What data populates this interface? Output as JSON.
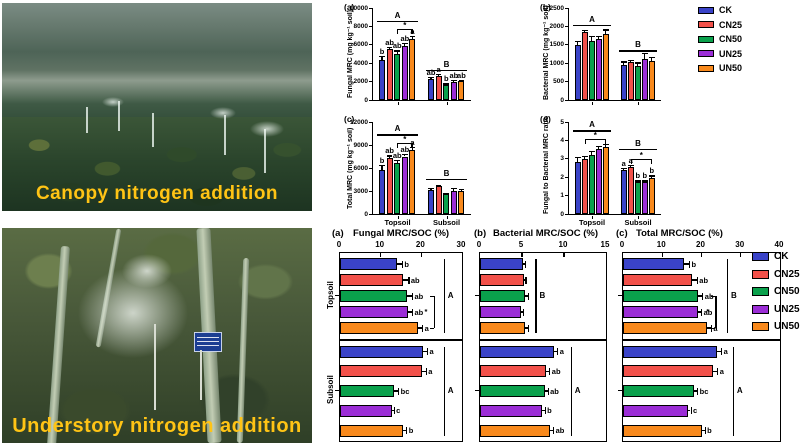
{
  "photos": {
    "canopy_caption": "Canopy nitrogen addition",
    "understory_caption": "Understory nitrogen addition",
    "caption_color": "#FFC415"
  },
  "treatments": [
    {
      "label": "CK",
      "color": "#3A43C8"
    },
    {
      "label": "CN25",
      "color": "#F2514A"
    },
    {
      "label": "CN50",
      "color": "#0AA14C"
    },
    {
      "label": "UN25",
      "color": "#9B2DD6"
    },
    {
      "label": "UN50",
      "color": "#F8891C"
    }
  ],
  "chart_data": [
    {
      "id": "top-a",
      "panel_label": "(a)",
      "type": "bar",
      "orientation": "vertical",
      "ylabel": "Fungal MRC (mg kg⁻¹ soil)",
      "ylim": [
        0,
        10000
      ],
      "yticks": [
        0,
        2000,
        4000,
        6000,
        8000,
        10000
      ],
      "categories": [
        "Topsoil",
        "Subsoil"
      ],
      "show_category_labels": false,
      "series": [
        {
          "name": "CK",
          "values": [
            4300,
            2250
          ],
          "errors": [
            500,
            250
          ]
        },
        {
          "name": "CN25",
          "values": [
            5500,
            2650
          ],
          "errors": [
            300,
            150
          ]
        },
        {
          "name": "CN50",
          "values": [
            5050,
            1600
          ],
          "errors": [
            350,
            200
          ]
        },
        {
          "name": "UN25",
          "values": [
            5900,
            1950
          ],
          "errors": [
            350,
            250
          ]
        },
        {
          "name": "UN50",
          "values": [
            6600,
            2050
          ],
          "errors": [
            400,
            150
          ]
        }
      ],
      "letters": [
        [
          "b",
          "ab",
          "ab",
          "ab",
          "a"
        ],
        [
          "ab",
          "a",
          "b",
          "ab",
          "ab"
        ]
      ],
      "sig": [
        {
          "kind": "hline",
          "group": 0,
          "at": 8600,
          "label": "A"
        },
        {
          "kind": "hline",
          "group": 1,
          "at": 3300,
          "label": "B"
        },
        {
          "kind": "bracket",
          "group": 0,
          "at": 7700,
          "from": 2,
          "to": 4,
          "label": "*"
        }
      ]
    },
    {
      "id": "top-b",
      "panel_label": "(b)",
      "type": "bar",
      "orientation": "vertical",
      "ylabel": "Bacterial MRC (mg kg⁻¹ soil)",
      "ylim": [
        0,
        2500
      ],
      "yticks": [
        0,
        500,
        1000,
        1500,
        2000,
        2500
      ],
      "categories": [
        "Topsoil",
        "Subsoil"
      ],
      "show_category_labels": false,
      "series": [
        {
          "name": "CK",
          "values": [
            1500,
            950
          ],
          "errors": [
            100,
            100
          ]
        },
        {
          "name": "CN25",
          "values": [
            1850,
            1020
          ],
          "errors": [
            60,
            60
          ]
        },
        {
          "name": "CN50",
          "values": [
            1600,
            930
          ],
          "errors": [
            150,
            90
          ]
        },
        {
          "name": "UN25",
          "values": [
            1650,
            1120
          ],
          "errors": [
            100,
            150
          ]
        },
        {
          "name": "UN50",
          "values": [
            1800,
            1060
          ],
          "errors": [
            120,
            100
          ]
        }
      ],
      "letters": [
        null,
        null
      ],
      "sig": [
        {
          "kind": "hline",
          "group": 0,
          "at": 2050,
          "label": "A"
        },
        {
          "kind": "hline",
          "group": 1,
          "at": 1350,
          "label": "B"
        }
      ]
    },
    {
      "id": "top-c",
      "panel_label": "(c)",
      "type": "bar",
      "orientation": "vertical",
      "ylabel": "Total MRC (mg kg⁻¹ soil)",
      "ylim": [
        0,
        12000
      ],
      "yticks": [
        0,
        3000,
        6000,
        9000,
        12000
      ],
      "categories": [
        "Topsoil",
        "Subsoil"
      ],
      "show_category_labels": true,
      "series": [
        {
          "name": "CK",
          "values": [
            5800,
            3100
          ],
          "errors": [
            600,
            300
          ]
        },
        {
          "name": "CN25",
          "values": [
            7300,
            3650
          ],
          "errors": [
            350,
            150
          ]
        },
        {
          "name": "CN50",
          "values": [
            6650,
            2550
          ],
          "errors": [
            400,
            250
          ]
        },
        {
          "name": "UN25",
          "values": [
            7500,
            3050
          ],
          "errors": [
            350,
            350
          ]
        },
        {
          "name": "UN50",
          "values": [
            8300,
            3050
          ],
          "errors": [
            450,
            200
          ]
        }
      ],
      "letters": [
        [
          "b",
          "ab",
          "ab",
          "ab",
          "a"
        ],
        null
      ],
      "sig": [
        {
          "kind": "hline",
          "group": 0,
          "at": 10400,
          "label": "A"
        },
        {
          "kind": "hline",
          "group": 1,
          "at": 4600,
          "label": "B"
        },
        {
          "kind": "bracket",
          "group": 0,
          "at": 9300,
          "from": 2,
          "to": 4,
          "label": "*"
        }
      ]
    },
    {
      "id": "top-d",
      "panel_label": "(d)",
      "type": "bar",
      "orientation": "vertical",
      "ylabel": "Fungal to Bacterial MRC ratio",
      "ylim": [
        0,
        5
      ],
      "yticks": [
        0,
        1,
        2,
        3,
        4,
        5
      ],
      "categories": [
        "Topsoil",
        "Subsoil"
      ],
      "show_category_labels": true,
      "series": [
        {
          "name": "CK",
          "values": [
            2.85,
            2.4
          ],
          "errors": [
            0.25,
            0.1
          ]
        },
        {
          "name": "CN25",
          "values": [
            3.0,
            2.55
          ],
          "errors": [
            0.15,
            0.1
          ]
        },
        {
          "name": "CN50",
          "values": [
            3.2,
            1.75
          ],
          "errors": [
            0.25,
            0.08
          ]
        },
        {
          "name": "UN25",
          "values": [
            3.55,
            1.75
          ],
          "errors": [
            0.15,
            0.08
          ]
        },
        {
          "name": "UN50",
          "values": [
            3.65,
            1.95
          ],
          "errors": [
            0.15,
            0.15
          ]
        }
      ],
      "letters": [
        null,
        [
          "a",
          "a",
          "b",
          "b",
          "b"
        ]
      ],
      "sig": [
        {
          "kind": "hline",
          "group": 0,
          "at": 4.55,
          "label": "A"
        },
        {
          "kind": "hline",
          "group": 1,
          "at": 3.55,
          "label": "B"
        },
        {
          "kind": "bracket",
          "group": 0,
          "at": 4.1,
          "from": 1,
          "to": 4,
          "label": "*"
        },
        {
          "kind": "bracket",
          "group": 1,
          "at": 3.0,
          "from": 1,
          "to": 4,
          "label": "*"
        }
      ]
    },
    {
      "id": "bot-a",
      "panel_label": "(a)",
      "title": "Fungal MRC/SOC (%)",
      "type": "bar",
      "orientation": "horizontal",
      "xlim": [
        0,
        30
      ],
      "xticks": [
        0,
        10,
        20,
        30
      ],
      "sections": [
        {
          "name": "Topsoil",
          "values": [
            14,
            15.5,
            16.5,
            16.8,
            19.3
          ],
          "errors": [
            1.2,
            1.3,
            1.2,
            0.9,
            0.9
          ],
          "letters": [
            "b",
            "ab",
            "ab",
            "ab",
            "a"
          ],
          "sig": [
            {
              "kind": "vline",
              "at": 25.5,
              "label": "A"
            },
            {
              "kind": "bracket",
              "at": 23,
              "from": 2,
              "to": 4,
              "label": "*"
            }
          ]
        },
        {
          "name": "Subsoil",
          "values": [
            20.5,
            20.2,
            13.4,
            12.7,
            15.6
          ],
          "errors": [
            0.9,
            0.9,
            0.9,
            0.5,
            0.7
          ],
          "letters": [
            "a",
            "a",
            "bc",
            "c",
            "b"
          ],
          "sig": [
            {
              "kind": "vline",
              "at": 25.5,
              "label": "A"
            }
          ]
        }
      ]
    },
    {
      "id": "bot-b",
      "panel_label": "(b)",
      "title": "Bacterial MRC/SOC (%)",
      "type": "bar",
      "orientation": "horizontal",
      "xlim": [
        0,
        15
      ],
      "xticks": [
        0,
        5,
        10,
        15
      ],
      "sections": [
        {
          "name": "Topsoil",
          "values": [
            5.1,
            5.2,
            5.4,
            4.9,
            5.4
          ],
          "errors": [
            0.25,
            0.2,
            0.3,
            0.25,
            0.3
          ],
          "letters": null,
          "sig": [
            {
              "kind": "vline",
              "at": 6.6,
              "label": "B"
            }
          ]
        },
        {
          "name": "Subsoil",
          "values": [
            8.8,
            7.9,
            7.7,
            7.4,
            8.3
          ],
          "errors": [
            0.4,
            0.35,
            0.35,
            0.3,
            0.4
          ],
          "letters": [
            "a",
            "ab",
            "ab",
            "b",
            "ab"
          ],
          "sig": [
            {
              "kind": "vline",
              "at": 10.8,
              "label": "A"
            }
          ]
        }
      ]
    },
    {
      "id": "bot-c",
      "panel_label": "(c)",
      "title": "Total MRC/SOC (%)",
      "type": "bar",
      "orientation": "horizontal",
      "xlim": [
        0,
        40
      ],
      "xticks": [
        0,
        10,
        20,
        30,
        40
      ],
      "sections": [
        {
          "name": "Topsoil",
          "values": [
            15.5,
            17.5,
            19,
            19,
            21.5
          ],
          "errors": [
            1.3,
            1.3,
            1.2,
            0.9,
            0.9
          ],
          "letters": [
            "b",
            "ab",
            "ab",
            "ab",
            "a"
          ],
          "sig": [
            {
              "kind": "vline",
              "at": 26.5,
              "label": "B"
            },
            {
              "kind": "bracket",
              "at": 23.5,
              "from": 2,
              "to": 4,
              "label": "*"
            }
          ]
        },
        {
          "name": "Subsoil",
          "values": [
            24,
            23,
            18,
            16.5,
            20
          ],
          "errors": [
            1,
            1,
            0.9,
            0.7,
            0.8
          ],
          "letters": [
            "a",
            "a",
            "bc",
            "c",
            "b"
          ],
          "sig": [
            {
              "kind": "vline",
              "at": 28,
              "label": "A"
            }
          ]
        }
      ]
    }
  ]
}
